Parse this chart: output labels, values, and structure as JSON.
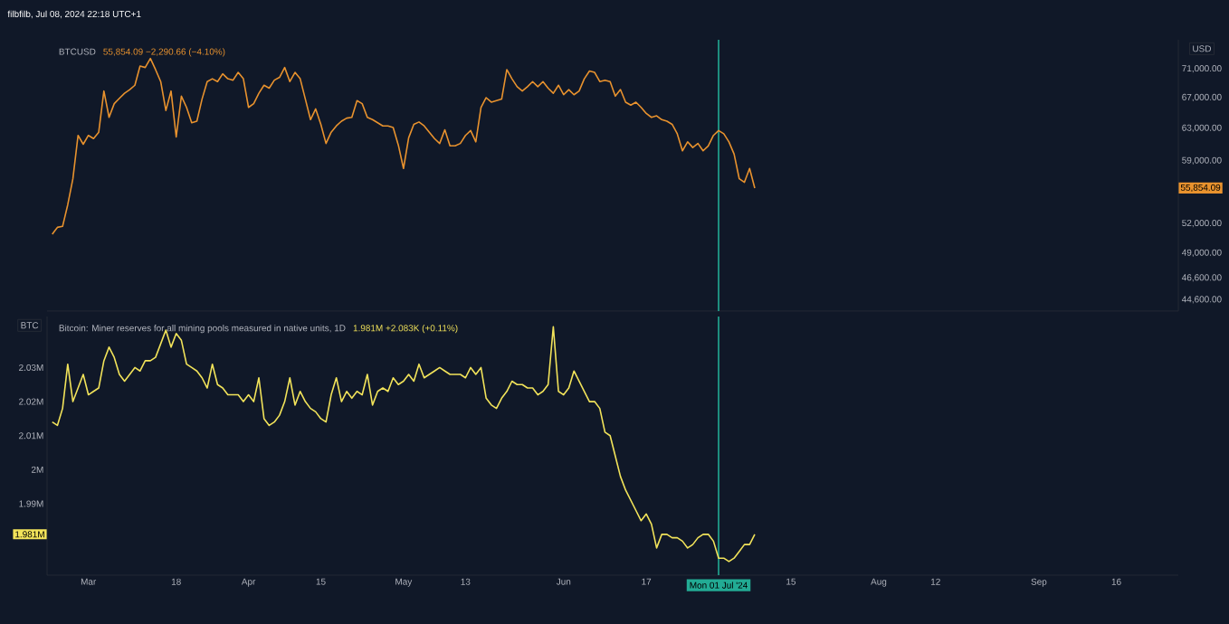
{
  "chart_data": [
    {
      "type": "line",
      "title": "BTCUSD",
      "subtitle": "55,854.09 −2,290.66 (−4.10%)",
      "ylabel": "USD",
      "annotations": [
        "filbfilb, Jul 08, 2024 22:18 UTC+1",
        "55,854.09"
      ],
      "x": [
        "2024-02-23",
        "2024-02-24",
        "2024-02-25",
        "2024-02-26",
        "2024-02-27",
        "2024-02-28",
        "2024-02-29",
        "2024-03-01",
        "2024-03-02",
        "2024-03-03",
        "2024-03-04",
        "2024-03-05",
        "2024-03-06",
        "2024-03-07",
        "2024-03-08",
        "2024-03-09",
        "2024-03-10",
        "2024-03-11",
        "2024-03-12",
        "2024-03-13",
        "2024-03-14",
        "2024-03-15",
        "2024-03-16",
        "2024-03-17",
        "2024-03-18",
        "2024-03-19",
        "2024-03-20",
        "2024-03-21",
        "2024-03-22",
        "2024-03-23",
        "2024-03-24",
        "2024-03-25",
        "2024-03-26",
        "2024-03-27",
        "2024-03-28",
        "2024-03-29",
        "2024-03-30",
        "2024-03-31",
        "2024-04-01",
        "2024-04-02",
        "2024-04-03",
        "2024-04-04",
        "2024-04-05",
        "2024-04-06",
        "2024-04-07",
        "2024-04-08",
        "2024-04-09",
        "2024-04-10",
        "2024-04-11",
        "2024-04-12",
        "2024-04-13",
        "2024-04-14",
        "2024-04-15",
        "2024-04-16",
        "2024-04-17",
        "2024-04-18",
        "2024-04-19",
        "2024-04-20",
        "2024-04-21",
        "2024-04-22",
        "2024-04-23",
        "2024-04-24",
        "2024-04-25",
        "2024-04-26",
        "2024-04-27",
        "2024-04-28",
        "2024-04-29",
        "2024-04-30",
        "2024-05-01",
        "2024-05-02",
        "2024-05-03",
        "2024-05-04",
        "2024-05-05",
        "2024-05-06",
        "2024-05-07",
        "2024-05-08",
        "2024-05-09",
        "2024-05-10",
        "2024-05-11",
        "2024-05-12",
        "2024-05-13",
        "2024-05-14",
        "2024-05-15",
        "2024-05-16",
        "2024-05-17",
        "2024-05-18",
        "2024-05-19",
        "2024-05-20",
        "2024-05-21",
        "2024-05-22",
        "2024-05-23",
        "2024-05-24",
        "2024-05-25",
        "2024-05-26",
        "2024-05-27",
        "2024-05-28",
        "2024-05-29",
        "2024-05-30",
        "2024-05-31",
        "2024-06-01",
        "2024-06-02",
        "2024-06-03",
        "2024-06-04",
        "2024-06-05",
        "2024-06-06",
        "2024-06-07",
        "2024-06-08",
        "2024-06-09",
        "2024-06-10",
        "2024-06-11",
        "2024-06-12",
        "2024-06-13",
        "2024-06-14",
        "2024-06-15",
        "2024-06-16",
        "2024-06-17",
        "2024-06-18",
        "2024-06-19",
        "2024-06-20",
        "2024-06-21",
        "2024-06-22",
        "2024-06-23",
        "2024-06-24",
        "2024-06-25",
        "2024-06-26",
        "2024-06-27",
        "2024-06-28",
        "2024-06-29",
        "2024-06-30",
        "2024-07-01",
        "2024-07-02",
        "2024-07-03",
        "2024-07-04",
        "2024-07-05",
        "2024-07-06",
        "2024-07-07",
        "2024-07-08"
      ],
      "series": [
        {
          "color": "#e8922e",
          "values": [
            50900,
            51600,
            51700,
            54000,
            56900,
            62100,
            61000,
            62100,
            61700,
            62500,
            67900,
            64400,
            66200,
            66900,
            67600,
            68100,
            68700,
            71400,
            71200,
            72500,
            70900,
            69200,
            65300,
            67900,
            61900,
            67200,
            65700,
            63700,
            63900,
            66800,
            69200,
            69600,
            69200,
            70300,
            69600,
            69400,
            70500,
            69600,
            65700,
            66200,
            67600,
            68700,
            68300,
            69400,
            69800,
            71200,
            69200,
            70500,
            69600,
            66800,
            64100,
            65500,
            63500,
            61100,
            62500,
            63300,
            63900,
            64300,
            64400,
            66600,
            66200,
            64400,
            64100,
            63700,
            63300,
            63300,
            63100,
            60900,
            58100,
            61800,
            63500,
            63800,
            63300,
            62500,
            61700,
            61100,
            62800,
            60800,
            60800,
            61100,
            62100,
            62700,
            61300,
            65700,
            67000,
            66400,
            66600,
            66800,
            70900,
            69600,
            68500,
            67900,
            68500,
            69200,
            68500,
            69200,
            68300,
            67600,
            68700,
            67400,
            68100,
            67400,
            67900,
            69600,
            70700,
            70500,
            69200,
            69400,
            69200,
            67200,
            68100,
            66400,
            66000,
            66400,
            65700,
            64900,
            64400,
            64600,
            64100,
            63900,
            63500,
            62300,
            60200,
            61300,
            60600,
            61100,
            60200,
            60800,
            62100,
            62700,
            62300,
            61300,
            59800,
            56900,
            56500,
            58100,
            55854.09
          ]
        }
      ],
      "xlim": [
        "2024-02-22",
        "2024-09-28"
      ],
      "ylim": [
        43600,
        75300
      ],
      "log": true,
      "tick_labels": "y",
      "yticks": [
        {
          "value": 44600,
          "label": "44,600.00"
        },
        {
          "value": 46600,
          "label": "46,600.00"
        },
        {
          "value": 49000,
          "label": "49,000.00"
        },
        {
          "value": 52000,
          "label": "52,000.00"
        },
        {
          "value": 59000,
          "label": "59,000.00"
        },
        {
          "value": 63000,
          "label": "63,000.00"
        },
        {
          "value": 67000,
          "label": "67,000.00"
        },
        {
          "value": 71000,
          "label": "71,000.00"
        }
      ],
      "ref_lines": [
        {
          "axis": "x",
          "value": "2024-07-01",
          "color": "#22ab94"
        }
      ]
    },
    {
      "type": "line",
      "title": "Bitcoin: Miner reserves for all mining pools measured in native units, 1D",
      "subtitle": "1.981M +2.083K (+0.11%)",
      "ylabel": "BTC",
      "annotations": [
        "1.981M"
      ],
      "x": [
        "2024-02-23",
        "2024-02-24",
        "2024-02-25",
        "2024-02-26",
        "2024-02-27",
        "2024-02-28",
        "2024-02-29",
        "2024-03-01",
        "2024-03-02",
        "2024-03-03",
        "2024-03-04",
        "2024-03-05",
        "2024-03-06",
        "2024-03-07",
        "2024-03-08",
        "2024-03-09",
        "2024-03-10",
        "2024-03-11",
        "2024-03-12",
        "2024-03-13",
        "2024-03-14",
        "2024-03-15",
        "2024-03-16",
        "2024-03-17",
        "2024-03-18",
        "2024-03-19",
        "2024-03-20",
        "2024-03-21",
        "2024-03-22",
        "2024-03-23",
        "2024-03-24",
        "2024-03-25",
        "2024-03-26",
        "2024-03-27",
        "2024-03-28",
        "2024-03-29",
        "2024-03-30",
        "2024-03-31",
        "2024-04-01",
        "2024-04-02",
        "2024-04-03",
        "2024-04-04",
        "2024-04-05",
        "2024-04-06",
        "2024-04-07",
        "2024-04-08",
        "2024-04-09",
        "2024-04-10",
        "2024-04-11",
        "2024-04-12",
        "2024-04-13",
        "2024-04-14",
        "2024-04-15",
        "2024-04-16",
        "2024-04-17",
        "2024-04-18",
        "2024-04-19",
        "2024-04-20",
        "2024-04-21",
        "2024-04-22",
        "2024-04-23",
        "2024-04-24",
        "2024-04-25",
        "2024-04-26",
        "2024-04-27",
        "2024-04-28",
        "2024-04-29",
        "2024-04-30",
        "2024-05-01",
        "2024-05-02",
        "2024-05-03",
        "2024-05-04",
        "2024-05-05",
        "2024-05-06",
        "2024-05-07",
        "2024-05-08",
        "2024-05-09",
        "2024-05-10",
        "2024-05-11",
        "2024-05-12",
        "2024-05-13",
        "2024-05-14",
        "2024-05-15",
        "2024-05-16",
        "2024-05-17",
        "2024-05-18",
        "2024-05-19",
        "2024-05-20",
        "2024-05-21",
        "2024-05-22",
        "2024-05-23",
        "2024-05-24",
        "2024-05-25",
        "2024-05-26",
        "2024-05-27",
        "2024-05-28",
        "2024-05-29",
        "2024-05-30",
        "2024-05-31",
        "2024-06-01",
        "2024-06-02",
        "2024-06-03",
        "2024-06-04",
        "2024-06-05",
        "2024-06-06",
        "2024-06-07",
        "2024-06-08",
        "2024-06-09",
        "2024-06-10",
        "2024-06-11",
        "2024-06-12",
        "2024-06-13",
        "2024-06-14",
        "2024-06-15",
        "2024-06-16",
        "2024-06-17",
        "2024-06-18",
        "2024-06-19",
        "2024-06-20",
        "2024-06-21",
        "2024-06-22",
        "2024-06-23",
        "2024-06-24",
        "2024-06-25",
        "2024-06-26",
        "2024-06-27",
        "2024-06-28",
        "2024-06-29",
        "2024-06-30",
        "2024-07-01",
        "2024-07-02",
        "2024-07-03",
        "2024-07-04",
        "2024-07-05",
        "2024-07-06",
        "2024-07-07",
        "2024-07-08"
      ],
      "series": [
        {
          "color": "#f2e35a",
          "values": [
            2.014,
            2.013,
            2.018,
            2.031,
            2.02,
            2.024,
            2.028,
            2.022,
            2.023,
            2.024,
            2.032,
            2.036,
            2.033,
            2.028,
            2.026,
            2.028,
            2.03,
            2.029,
            2.032,
            2.032,
            2.033,
            2.037,
            2.041,
            2.036,
            2.04,
            2.038,
            2.031,
            2.03,
            2.029,
            2.027,
            2.024,
            2.031,
            2.025,
            2.024,
            2.022,
            2.022,
            2.022,
            2.02,
            2.022,
            2.02,
            2.027,
            2.015,
            2.013,
            2.014,
            2.016,
            2.02,
            2.027,
            2.019,
            2.023,
            2.02,
            2.018,
            2.017,
            2.015,
            2.014,
            2.022,
            2.027,
            2.02,
            2.023,
            2.021,
            2.023,
            2.022,
            2.028,
            2.019,
            2.023,
            2.024,
            2.023,
            2.027,
            2.025,
            2.026,
            2.028,
            2.026,
            2.031,
            2.027,
            2.028,
            2.029,
            2.03,
            2.029,
            2.028,
            2.028,
            2.028,
            2.027,
            2.03,
            2.028,
            2.03,
            2.021,
            2.019,
            2.018,
            2.021,
            2.023,
            2.026,
            2.025,
            2.025,
            2.024,
            2.024,
            2.022,
            2.023,
            2.025,
            2.042,
            2.023,
            2.022,
            2.024,
            2.029,
            2.026,
            2.023,
            2.02,
            2.02,
            2.018,
            2.011,
            2.01,
            2.004,
            1.998,
            1.994,
            1.991,
            1.988,
            1.985,
            1.987,
            1.984,
            1.977,
            1.981,
            1.981,
            1.98,
            1.98,
            1.979,
            1.977,
            1.978,
            1.98,
            1.981,
            1.981,
            1.979,
            1.974,
            1.974,
            1.973,
            1.974,
            1.976,
            1.978,
            1.978,
            1.981
          ]
        }
      ],
      "xlim": [
        "2024-02-22",
        "2024-09-28"
      ],
      "ylim": [
        1.969,
        2.045
      ],
      "xticks": [
        {
          "value": "2024-03-01",
          "label": "Mar"
        },
        {
          "value": "2024-03-18",
          "label": "18"
        },
        {
          "value": "2024-04-01",
          "label": "Apr"
        },
        {
          "value": "2024-04-15",
          "label": "15"
        },
        {
          "value": "2024-05-01",
          "label": "May"
        },
        {
          "value": "2024-05-13",
          "label": "13"
        },
        {
          "value": "2024-06-01",
          "label": "Jun"
        },
        {
          "value": "2024-06-17",
          "label": "17"
        },
        {
          "value": "2024-07-15",
          "label": "15"
        },
        {
          "value": "2024-08-01",
          "label": "Aug"
        },
        {
          "value": "2024-08-12",
          "label": "12"
        },
        {
          "value": "2024-09-01",
          "label": "Sep"
        },
        {
          "value": "2024-09-16",
          "label": "16"
        }
      ],
      "yticks": [
        {
          "value": 1.99,
          "label": "1.99M"
        },
        {
          "value": 2,
          "label": "2M"
        },
        {
          "value": 2.01,
          "label": "2.01M"
        },
        {
          "value": 2.02,
          "label": "2.02M"
        },
        {
          "value": 2.03,
          "label": "2.03M"
        }
      ],
      "ref_lines": [
        {
          "axis": "x",
          "value": "2024-07-01",
          "label": "Mon 01 Jul '24",
          "color": "#22ab94"
        }
      ]
    }
  ]
}
